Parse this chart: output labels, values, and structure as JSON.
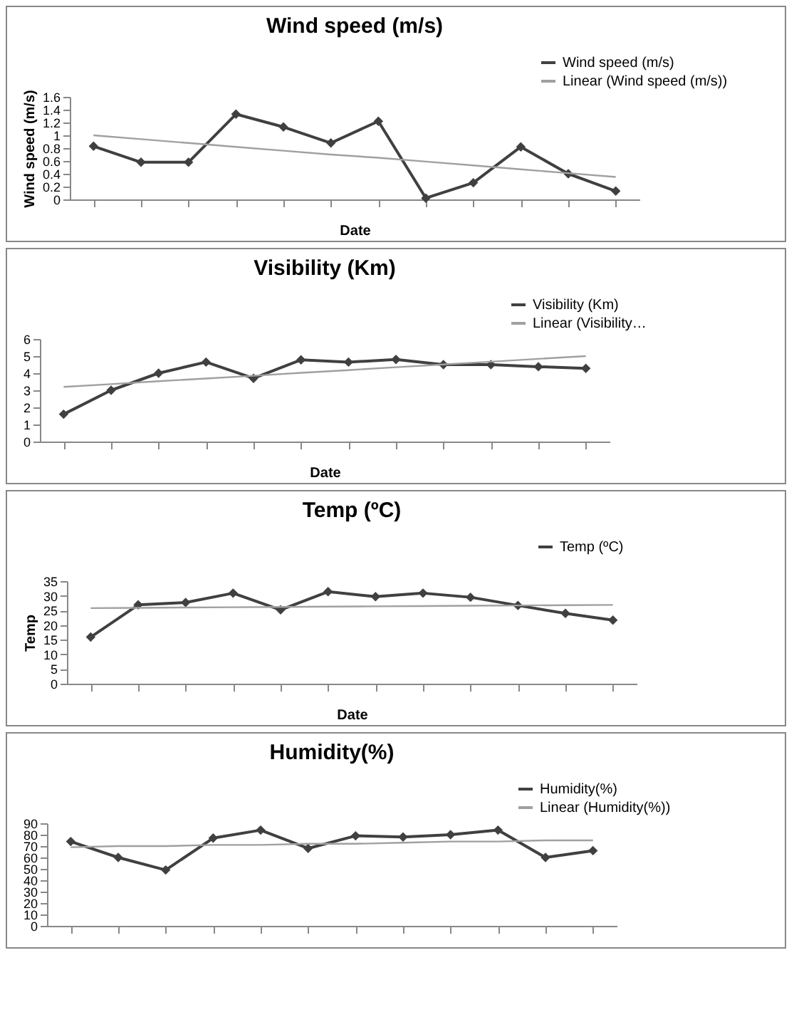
{
  "chart_data": [
    {
      "type": "line",
      "title": "Wind speed (m/s)",
      "xlabel": "Date",
      "ylabel": "Wind speed (m/s)",
      "categories": [
        null,
        null,
        null,
        null,
        null,
        null,
        null,
        null,
        null,
        null,
        null,
        null
      ],
      "ylim": [
        0,
        1.6
      ],
      "yticks": [
        0,
        0.2,
        0.4,
        0.6,
        0.8,
        1,
        1.2,
        1.4,
        1.6
      ],
      "legend": "top right",
      "marker": "diamond",
      "series": [
        {
          "name": "Wind speed (m/s)",
          "color": "#404040",
          "values": [
            0.83,
            0.58,
            0.58,
            1.33,
            1.13,
            0.88,
            1.22,
            0.02,
            0.26,
            0.82,
            0.4,
            0.13
          ]
        },
        {
          "name": "Linear (Wind speed (m/s))",
          "color": "#a0a0a0",
          "marker": "none",
          "values": [
            1.0,
            0.94,
            0.88,
            0.82,
            0.76,
            0.7,
            0.65,
            0.59,
            0.53,
            0.47,
            0.41,
            0.35
          ]
        }
      ]
    },
    {
      "type": "line",
      "title": "Visibility (Km)",
      "xlabel": "Date",
      "categories": [
        null,
        null,
        null,
        null,
        null,
        null,
        null,
        null,
        null,
        null,
        null,
        null
      ],
      "ylim": [
        0,
        6
      ],
      "yticks": [
        0,
        1,
        2,
        3,
        4,
        5,
        6
      ],
      "legend": "top right",
      "marker": "diamond",
      "series": [
        {
          "name": "Visibility (Km)",
          "color": "#404040",
          "values": [
            1.6,
            3.0,
            4.0,
            4.65,
            3.7,
            4.78,
            4.65,
            4.8,
            4.5,
            4.5,
            4.38,
            4.28
          ]
        },
        {
          "name": "Linear (Visibility…",
          "color": "#a0a0a0",
          "marker": "none",
          "values": [
            3.2,
            3.36,
            3.53,
            3.69,
            3.85,
            4.02,
            4.18,
            4.35,
            4.51,
            4.67,
            4.84,
            5.0
          ]
        }
      ]
    },
    {
      "type": "line",
      "title": "Temp (ºC)",
      "xlabel": "Date",
      "ylabel": "Temp",
      "categories": [
        null,
        null,
        null,
        null,
        null,
        null,
        null,
        null,
        null,
        null,
        null,
        null
      ],
      "ylim": [
        0,
        35
      ],
      "yticks": [
        0,
        5,
        10,
        15,
        20,
        25,
        30,
        35
      ],
      "legend": "top right",
      "marker": "diamond",
      "series": [
        {
          "name": "Temp (ºC)",
          "color": "#404040",
          "values": [
            15.9,
            26.9,
            27.7,
            30.9,
            25.2,
            31.4,
            29.7,
            30.9,
            29.5,
            26.7,
            24.0,
            21.7
          ]
        },
        {
          "color": "#a0a0a0",
          "marker": "none",
          "values": [
            25.8,
            25.9,
            26.0,
            26.1,
            26.2,
            26.3,
            26.4,
            26.5,
            26.6,
            26.7,
            26.8,
            26.9
          ]
        }
      ]
    },
    {
      "type": "line",
      "title": "Humidity(%)",
      "categories": [
        null,
        null,
        null,
        null,
        null,
        null,
        null,
        null,
        null,
        null,
        null,
        null
      ],
      "ylim": [
        0,
        90
      ],
      "yticks": [
        0,
        10,
        20,
        30,
        40,
        50,
        60,
        70,
        80,
        90
      ],
      "legend": "top right",
      "marker": "diamond",
      "series": [
        {
          "name": "Humidity(%)",
          "color": "#404040",
          "values": [
            74,
            60,
            49,
            77,
            84,
            68,
            79,
            78,
            80,
            84,
            60,
            66
          ]
        },
        {
          "name": "Linear (Humidity(%))",
          "color": "#a0a0a0",
          "marker": "none",
          "values": [
            69,
            70,
            70,
            71,
            71,
            72,
            72,
            73,
            74,
            74,
            75,
            75
          ]
        }
      ]
    }
  ]
}
